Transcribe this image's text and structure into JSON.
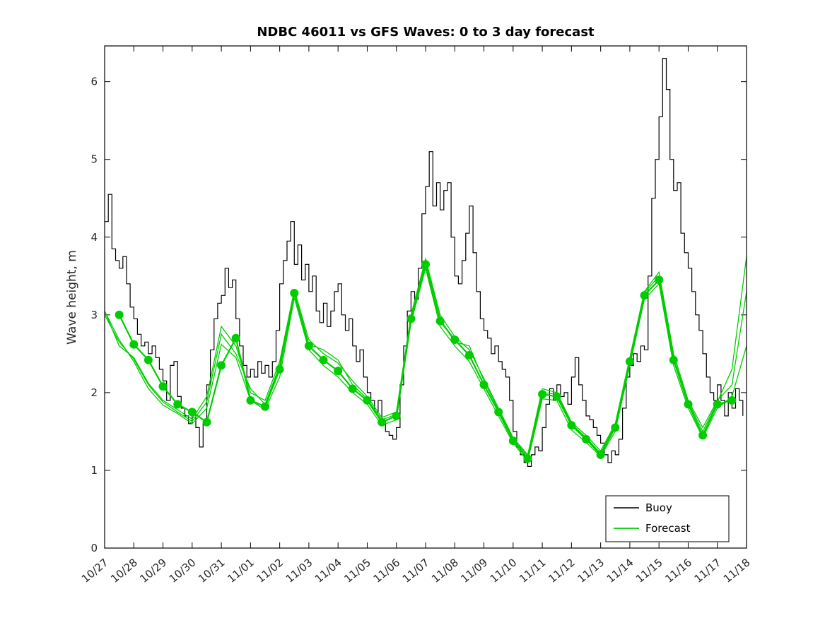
{
  "chart_data": {
    "type": "line",
    "title": "NDBC 46011 vs GFS Waves: 0 to 3 day forecast",
    "xlabel": "",
    "ylabel": "Wave height, m",
    "ylim": [
      0,
      6.46
    ],
    "yticks": [
      0,
      1,
      2,
      3,
      4,
      5,
      6
    ],
    "ytick_labels": [
      "0",
      "1",
      "2",
      "3",
      "4",
      "5",
      "6"
    ],
    "xlim_days": [
      0,
      22
    ],
    "xtick_days": [
      0,
      1,
      2,
      3,
      4,
      5,
      6,
      7,
      8,
      9,
      10,
      11,
      12,
      13,
      14,
      15,
      16,
      17,
      18,
      19,
      20,
      21,
      22
    ],
    "xtick_labels": [
      "10/27",
      "10/28",
      "10/29",
      "10/30",
      "10/31",
      "11/01",
      "11/02",
      "11/03",
      "11/04",
      "11/05",
      "11/06",
      "11/07",
      "11/08",
      "11/09",
      "11/10",
      "11/11",
      "11/12",
      "11/13",
      "11/14",
      "11/15",
      "11/16",
      "11/17",
      "11/18"
    ],
    "grid": false,
    "legend_position": "bottom-right",
    "legend_items": [
      {
        "label": "Buoy",
        "color": "#000000"
      },
      {
        "label": "Forecast",
        "color": "#00cc00"
      }
    ],
    "colors": {
      "buoy": "#000000",
      "forecast": "#00cc00",
      "axis": "#000000",
      "background": "#ffffff"
    },
    "series": [
      {
        "name": "Buoy",
        "color": "#000000",
        "style": "step",
        "line_width": 1.2,
        "x_start": 0,
        "x_step": 0.125,
        "values": [
          4.2,
          4.55,
          3.85,
          3.7,
          3.6,
          3.75,
          3.4,
          3.1,
          2.95,
          2.75,
          2.6,
          2.65,
          2.5,
          2.6,
          2.45,
          2.3,
          2.15,
          1.9,
          2.35,
          2.4,
          1.95,
          1.8,
          1.7,
          1.6,
          1.75,
          1.55,
          1.3,
          1.6,
          2.1,
          2.55,
          2.95,
          3.15,
          3.25,
          3.6,
          3.35,
          3.45,
          2.95,
          2.6,
          2.35,
          2.2,
          2.3,
          2.2,
          2.4,
          2.25,
          2.35,
          2.2,
          2.4,
          2.8,
          3.4,
          3.7,
          3.95,
          4.2,
          3.65,
          3.9,
          3.45,
          3.65,
          3.3,
          3.5,
          3.05,
          2.9,
          3.15,
          2.85,
          3.05,
          3.3,
          3.4,
          3.0,
          2.8,
          2.95,
          2.6,
          2.4,
          2.55,
          2.2,
          2.0,
          1.9,
          1.75,
          1.9,
          1.6,
          1.5,
          1.45,
          1.4,
          1.55,
          2.1,
          2.6,
          3.05,
          3.3,
          3.2,
          3.6,
          4.3,
          4.65,
          5.1,
          4.4,
          4.7,
          4.35,
          4.6,
          4.7,
          4.0,
          3.5,
          3.4,
          3.7,
          4.05,
          4.4,
          3.8,
          3.3,
          2.95,
          2.8,
          2.7,
          2.5,
          2.6,
          2.4,
          2.3,
          2.2,
          1.9,
          1.5,
          1.3,
          1.2,
          1.1,
          1.05,
          1.2,
          1.3,
          1.25,
          1.55,
          1.85,
          2.05,
          1.9,
          2.1,
          1.95,
          2.0,
          1.85,
          2.2,
          2.45,
          2.1,
          1.9,
          1.7,
          1.65,
          1.55,
          1.45,
          1.35,
          1.2,
          1.1,
          1.25,
          1.2,
          1.4,
          1.8,
          2.2,
          2.35,
          2.5,
          2.4,
          2.6,
          2.55,
          3.5,
          4.5,
          5.0,
          5.55,
          6.3,
          5.9,
          5.0,
          4.6,
          4.7,
          4.05,
          3.8,
          3.6,
          3.3,
          3.0,
          2.8,
          2.5,
          2.2,
          2.0,
          1.9,
          2.1,
          1.9,
          1.7,
          2.0,
          1.8,
          2.05,
          1.9,
          1.7
        ]
      },
      {
        "name": "Forecast member 1",
        "color": "#00cc00",
        "style": "line",
        "line_width": 1.3,
        "x_start": 0,
        "x_step": 0.5,
        "values": [
          3.05,
          2.6,
          2.45,
          2.12,
          1.9,
          1.78,
          1.66,
          1.95,
          2.85,
          2.6,
          2.0,
          1.9,
          2.4,
          3.32,
          2.68,
          2.5,
          2.38,
          2.15,
          1.95,
          1.68,
          1.75,
          3.0,
          3.72,
          3.0,
          2.72,
          2.55,
          2.18,
          1.8,
          1.42,
          1.2,
          2.05,
          2.0,
          1.62,
          1.45,
          1.25,
          1.6,
          2.45,
          3.3,
          3.55,
          2.5,
          1.9,
          1.55,
          1.9,
          2.1,
          3.3
        ]
      },
      {
        "name": "Forecast member 2",
        "color": "#00cc00",
        "style": "line",
        "line_width": 1.3,
        "x_start": 0,
        "x_step": 0.5,
        "values": [
          3.05,
          2.68,
          2.4,
          2.05,
          1.84,
          1.73,
          1.6,
          1.8,
          2.62,
          2.45,
          1.9,
          1.78,
          2.2,
          3.22,
          2.55,
          2.35,
          2.2,
          2.0,
          1.85,
          1.58,
          1.65,
          2.9,
          3.6,
          2.85,
          2.6,
          2.4,
          2.05,
          1.7,
          1.35,
          1.12,
          1.92,
          1.9,
          1.52,
          1.36,
          1.18,
          1.5,
          2.35,
          3.2,
          3.4,
          2.35,
          1.8,
          1.42,
          1.8,
          1.95,
          2.6
        ]
      },
      {
        "name": "Forecast member 3",
        "color": "#00cc00",
        "style": "line",
        "line_width": 1.3,
        "x_start": 0,
        "x_step": 0.5,
        "values": [
          3.0,
          2.65,
          2.43,
          2.1,
          1.88,
          1.75,
          1.63,
          1.88,
          2.75,
          2.5,
          2.05,
          1.85,
          2.35,
          3.3,
          2.62,
          2.55,
          2.42,
          2.1,
          1.92,
          1.65,
          1.72,
          2.98,
          3.68,
          2.95,
          2.65,
          2.6,
          2.15,
          1.78,
          1.4,
          1.18,
          2.0,
          1.98,
          1.6,
          1.42,
          1.22,
          1.58,
          2.42,
          3.28,
          3.5,
          2.45,
          1.88,
          1.5,
          1.88,
          2.3,
          3.75
        ]
      },
      {
        "name": "Forecast",
        "color": "#00cc00",
        "style": "line-marker",
        "line_width": 2.2,
        "marker": "circle",
        "marker_radius": 6,
        "x_start": 0.5,
        "x_step": 0.5,
        "values": [
          3.0,
          2.62,
          2.42,
          2.08,
          1.85,
          1.75,
          1.62,
          2.35,
          2.7,
          1.9,
          1.82,
          2.3,
          3.28,
          2.6,
          2.42,
          2.28,
          2.05,
          1.9,
          1.62,
          1.7,
          2.95,
          3.65,
          2.92,
          2.68,
          2.48,
          2.1,
          1.75,
          1.38,
          1.15,
          1.98,
          1.95,
          1.58,
          1.4,
          1.2,
          1.55,
          2.4,
          3.25,
          3.45,
          2.42,
          1.85,
          1.45,
          1.85,
          1.9
        ]
      }
    ]
  }
}
